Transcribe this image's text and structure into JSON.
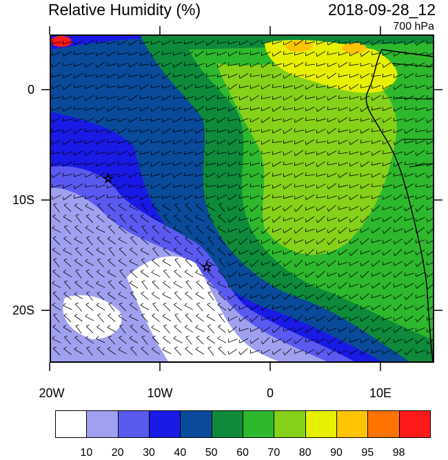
{
  "header": {
    "title": "Relative Humidity (%)",
    "datetime": "2018-09-28_12",
    "level": "700 hPa"
  },
  "map": {
    "lat_labels": [
      "0",
      "10S",
      "20S"
    ],
    "lon_labels": [
      "20W",
      "10W",
      "0",
      "10E"
    ],
    "stations": [
      {
        "name": "star-1"
      },
      {
        "name": "star-2"
      }
    ]
  },
  "legend": {
    "colors": [
      "#ffffff",
      "#a0a0f0",
      "#5a5af0",
      "#1a1ae6",
      "#0a4a9a",
      "#0e8a3a",
      "#2eb82e",
      "#86d11a",
      "#e6f000",
      "#ffc400",
      "#ff7300",
      "#ff1a1a"
    ],
    "labels": [
      "10",
      "20",
      "30",
      "40",
      "50",
      "60",
      "70",
      "80",
      "90",
      "95",
      "98"
    ]
  }
}
